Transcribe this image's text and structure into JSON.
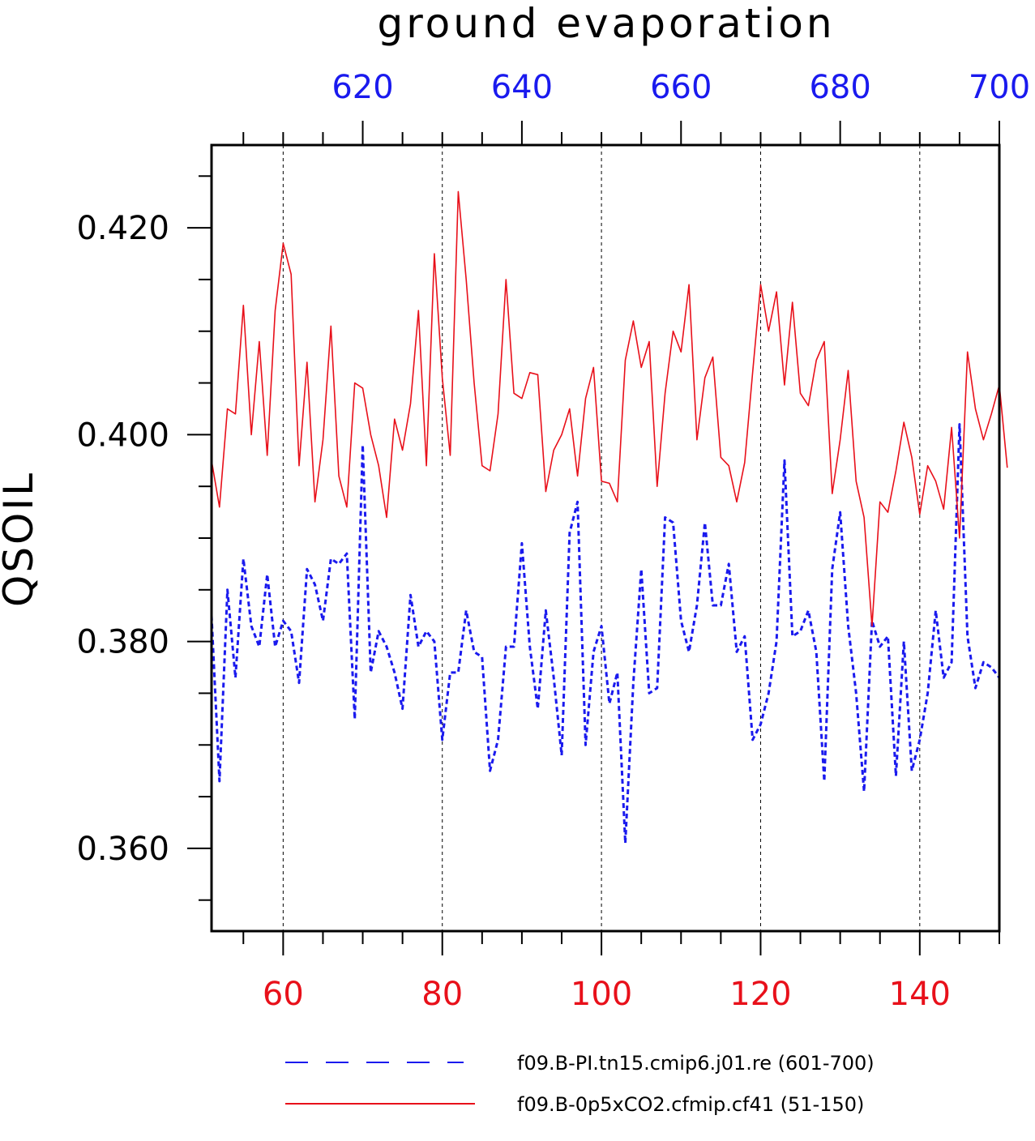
{
  "chart_data": {
    "type": "line",
    "title": "ground evaporation",
    "ylabel": "QSOIL",
    "ylim": [
      0.352,
      0.428
    ],
    "y_ticks": [
      "0.360",
      "0.380",
      "0.400",
      "0.420"
    ],
    "y_tick_values": [
      0.36,
      0.38,
      0.4,
      0.42
    ],
    "y_minor_step": 0.005,
    "x_bottom": {
      "range": [
        51,
        150
      ],
      "ticks": [
        60,
        80,
        100,
        120,
        140
      ],
      "tick_labels": [
        "60",
        "80",
        "100",
        "120",
        "140"
      ],
      "color": "#e8101a"
    },
    "x_top": {
      "range": [
        601,
        700
      ],
      "ticks": [
        620,
        640,
        660,
        680,
        700
      ],
      "tick_labels": [
        "620",
        "640",
        "660",
        "680",
        "700"
      ],
      "color": "#1a1aee"
    },
    "grid": "vertical dashed at major ticks",
    "legend_position": "bottom",
    "series": [
      {
        "name": "f09.B-PI.tn15.cmip6.j01.re (601-700)",
        "axis": "top",
        "color": "#1a1aee",
        "style": "dashed",
        "x_start": 601,
        "values": [
          0.3825,
          0.3665,
          0.385,
          0.3765,
          0.388,
          0.3815,
          0.3795,
          0.3865,
          0.3795,
          0.382,
          0.381,
          0.376,
          0.387,
          0.3855,
          0.382,
          0.388,
          0.3875,
          0.3885,
          0.3725,
          0.399,
          0.377,
          0.381,
          0.3795,
          0.377,
          0.3735,
          0.3845,
          0.3795,
          0.381,
          0.38,
          0.3705,
          0.377,
          0.377,
          0.383,
          0.379,
          0.3785,
          0.3675,
          0.3705,
          0.3795,
          0.3795,
          0.3895,
          0.3795,
          0.3735,
          0.383,
          0.3765,
          0.369,
          0.3905,
          0.3935,
          0.37,
          0.379,
          0.3815,
          0.374,
          0.377,
          0.3605,
          0.376,
          0.387,
          0.375,
          0.3755,
          0.392,
          0.3915,
          0.382,
          0.379,
          0.3835,
          0.3915,
          0.3835,
          0.3835,
          0.3875,
          0.379,
          0.3805,
          0.3705,
          0.372,
          0.375,
          0.38,
          0.3975,
          0.3805,
          0.381,
          0.383,
          0.379,
          0.3665,
          0.387,
          0.3925,
          0.3815,
          0.375,
          0.3655,
          0.382,
          0.3795,
          0.3805,
          0.367,
          0.38,
          0.3675,
          0.3705,
          0.375,
          0.383,
          0.3765,
          0.378,
          0.401,
          0.3805,
          0.3755,
          0.378,
          0.3775,
          0.3765
        ]
      },
      {
        "name": "f09.B-0p5xCO2.cfmip.cf41 (51-150)",
        "axis": "bottom",
        "color": "#e8101a",
        "style": "solid",
        "x_start": 51,
        "values": [
          0.3975,
          0.393,
          0.4025,
          0.402,
          0.4125,
          0.4,
          0.409,
          0.398,
          0.412,
          0.4185,
          0.4155,
          0.397,
          0.407,
          0.3935,
          0.3995,
          0.4105,
          0.396,
          0.393,
          0.405,
          0.4045,
          0.4,
          0.397,
          0.392,
          0.4015,
          0.3985,
          0.403,
          0.412,
          0.397,
          0.4175,
          0.4055,
          0.398,
          0.4235,
          0.415,
          0.405,
          0.397,
          0.3965,
          0.402,
          0.415,
          0.404,
          0.4035,
          0.406,
          0.4058,
          0.3945,
          0.3985,
          0.4,
          0.4025,
          0.396,
          0.4035,
          0.4065,
          0.3955,
          0.3953,
          0.3935,
          0.4072,
          0.411,
          0.4065,
          0.409,
          0.395,
          0.404,
          0.41,
          0.408,
          0.4145,
          0.3995,
          0.4055,
          0.4075,
          0.3978,
          0.397,
          0.3935,
          0.3973,
          0.406,
          0.4145,
          0.41,
          0.4138,
          0.4048,
          0.4128,
          0.404,
          0.4028,
          0.4072,
          0.409,
          0.3943,
          0.3995,
          0.4062,
          0.3955,
          0.392,
          0.3815,
          0.3935,
          0.3925,
          0.3965,
          0.4012,
          0.3978,
          0.3923,
          0.397,
          0.3955,
          0.3928,
          0.4007,
          0.39,
          0.408,
          0.4025,
          0.3995,
          0.402,
          0.4048,
          0.3968
        ]
      }
    ]
  }
}
